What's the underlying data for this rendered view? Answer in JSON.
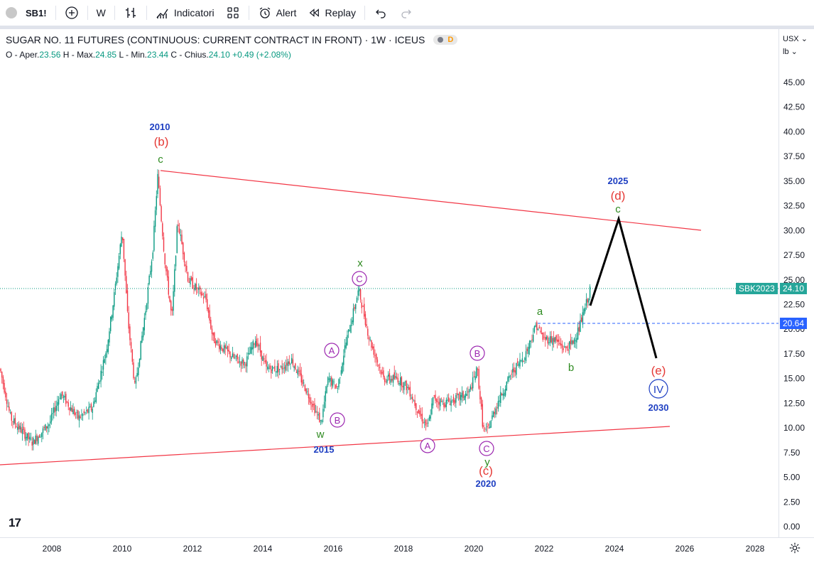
{
  "toolbar": {
    "symbol": "SB1!",
    "interval": "W",
    "indicators_label": "Indicatori",
    "alert_label": "Alert",
    "replay_label": "Replay"
  },
  "legend": {
    "title": "SUGAR NO. 11 FUTURES (CONTINUOUS: CURRENT CONTRACT IN FRONT) · 1W · ICEUS",
    "badge": "D",
    "o_label": "O - Aper.",
    "o_val": "23.56",
    "h_label": "H - Max.",
    "h_val": "24.85",
    "l_label": "L - Min.",
    "l_val": "23.44",
    "c_label": "C - Chius.",
    "c_val": "24.10",
    "change": "+0.49 (+2.08%)"
  },
  "axis": {
    "currency": "USX",
    "unit": "lb",
    "price_ticks": [
      "45.00",
      "42.50",
      "40.00",
      "37.50",
      "35.00",
      "32.50",
      "30.00",
      "27.50",
      "25.00",
      "22.50",
      "20.00",
      "17.50",
      "15.00",
      "12.50",
      "10.00",
      "7.50",
      "5.00",
      "2.50",
      "0.00"
    ],
    "time_ticks": [
      "2008",
      "2010",
      "2012",
      "2014",
      "2016",
      "2018",
      "2020",
      "2022",
      "2024",
      "2026",
      "2028"
    ]
  },
  "tags": {
    "sbk_label": "SBK2023",
    "sbk_value": "24.10",
    "level_value": "20.64"
  },
  "annotations": {
    "y2010": "2010",
    "b_paren": "(b)",
    "c_2010": "c",
    "x_label": "x",
    "c_circ_2016": "C",
    "a_circ_2015": "A",
    "b_circ_2015": "B",
    "w_label": "w",
    "y2015": "2015",
    "a_circ_2018": "A",
    "b_circ_2019": "B",
    "c_circ_2020": "C",
    "y_label": "y",
    "c_paren": "(c)",
    "y2020": "2020",
    "a_label": "a",
    "b_label": "b",
    "y2025": "2025",
    "d_paren": "(d)",
    "c_2025": "c",
    "e_paren": "(e)",
    "iv_circ": "IV",
    "y2030": "2030"
  },
  "colors": {
    "up": "#089981",
    "down": "#f23645",
    "trendline": "#f23645",
    "wave_blue": "#1e3fc2",
    "wave_red": "#e53935",
    "wave_green": "#2e8b20",
    "wave_purple": "#9c27b0"
  }
}
